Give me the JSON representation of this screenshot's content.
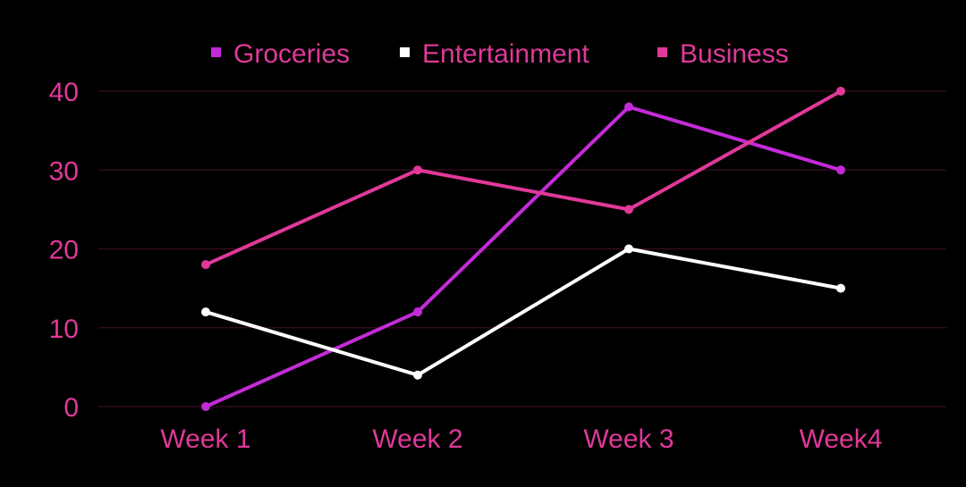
{
  "colors": {
    "background": "#000000",
    "grid": "#3a0c24",
    "tick_text": "#e0399a"
  },
  "chart_data": {
    "type": "line",
    "title": "",
    "xlabel": "",
    "ylabel": "",
    "categories": [
      "Week 1",
      "Week 2",
      "Week 3",
      "Week4"
    ],
    "ylim": [
      0,
      40
    ],
    "yticks": [
      0,
      10,
      20,
      30,
      40
    ],
    "grid": true,
    "legend_position": "top-center",
    "series": [
      {
        "name": "Groceries",
        "color": "#c42bd8",
        "values": [
          0,
          12,
          38,
          30
        ]
      },
      {
        "name": "Entertainment",
        "color": "#ffffff",
        "values": [
          12,
          4,
          20,
          15
        ]
      },
      {
        "name": "Business",
        "color": "#e0399a",
        "values": [
          18,
          30,
          25,
          40
        ]
      }
    ]
  }
}
